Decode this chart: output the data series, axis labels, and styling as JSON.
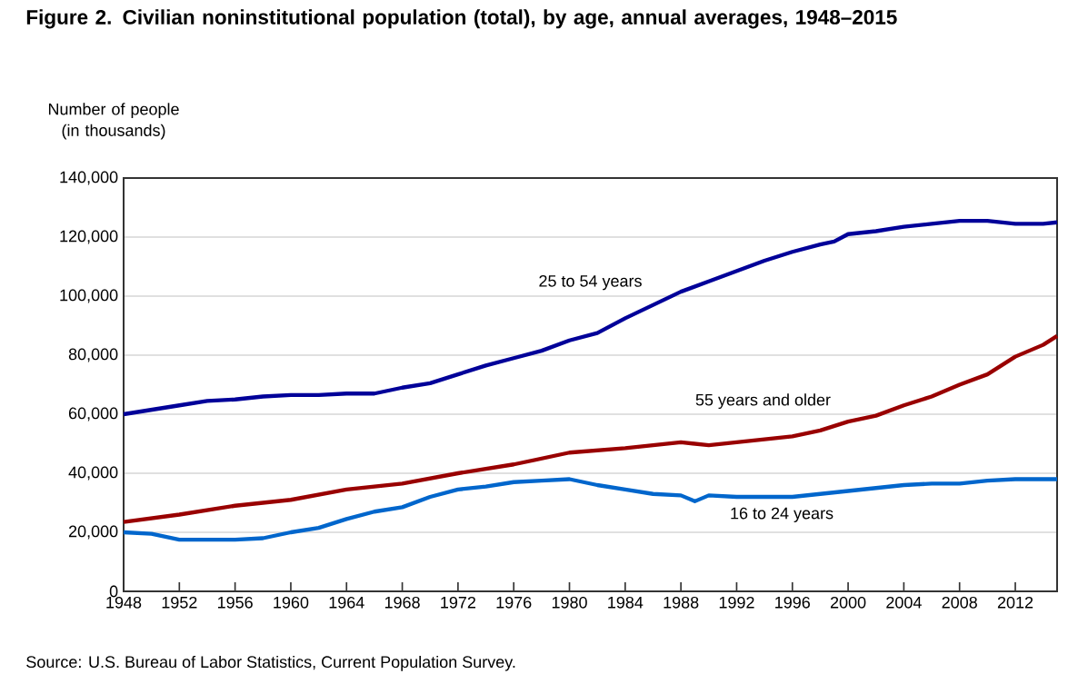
{
  "chart_data": {
    "type": "line",
    "title": "Figure 2. Civilian noninstitutional population (total), by age, annual averages, 1948–2015",
    "ylabel": "Number of people (in thousands)",
    "annotations": [
      "Source: U.S. Bureau of Labor Statistics, Current Population Survey."
    ],
    "series": [
      {
        "name": "25 to 54 years",
        "color": "#000099",
        "x": [
          1948,
          1950,
          1952,
          1954,
          1956,
          1958,
          1960,
          1962,
          1964,
          1966,
          1968,
          1970,
          1972,
          1974,
          1976,
          1978,
          1980,
          1982,
          1984,
          1986,
          1988,
          1990,
          1992,
          1994,
          1996,
          1998,
          1999,
          2000,
          2002,
          2004,
          2006,
          2008,
          2010,
          2011,
          2012,
          2014,
          2015
        ],
        "values": [
          60000,
          61500,
          63000,
          64500,
          65000,
          66000,
          66500,
          66500,
          67000,
          67000,
          69000,
          70500,
          73500,
          76500,
          79000,
          81500,
          85000,
          87500,
          92500,
          97000,
          101500,
          105000,
          108500,
          112000,
          115000,
          117500,
          118500,
          121000,
          122000,
          123500,
          124500,
          125500,
          125500,
          125000,
          124500,
          124500,
          125000
        ]
      },
      {
        "name": "55 years and older",
        "color": "#990000",
        "x": [
          1948,
          1952,
          1956,
          1960,
          1964,
          1968,
          1972,
          1976,
          1980,
          1984,
          1988,
          1990,
          1992,
          1996,
          1998,
          2000,
          2002,
          2004,
          2006,
          2008,
          2010,
          2011,
          2012,
          2014,
          2015
        ],
        "values": [
          23500,
          26000,
          29000,
          31000,
          34500,
          36500,
          40000,
          43000,
          47000,
          48500,
          50500,
          49500,
          50500,
          52500,
          54500,
          57500,
          59500,
          63000,
          66000,
          70000,
          73500,
          76500,
          79500,
          83500,
          86500
        ]
      },
      {
        "name": "16 to 24 years",
        "color": "#0066cc",
        "x": [
          1948,
          1950,
          1952,
          1954,
          1956,
          1958,
          1960,
          1962,
          1964,
          1966,
          1968,
          1970,
          1972,
          1974,
          1976,
          1978,
          1980,
          1982,
          1984,
          1986,
          1988,
          1989,
          1990,
          1992,
          1996,
          1998,
          2000,
          2002,
          2004,
          2006,
          2008,
          2010,
          2012,
          2015
        ],
        "values": [
          20000,
          19500,
          17500,
          17500,
          17500,
          18000,
          20000,
          21500,
          24500,
          27000,
          28500,
          32000,
          34500,
          35500,
          37000,
          37500,
          38000,
          36000,
          34500,
          33000,
          32500,
          30500,
          32500,
          32000,
          32000,
          33000,
          34000,
          35000,
          36000,
          36500,
          36500,
          37500,
          38000,
          38000
        ]
      }
    ],
    "xlim": [
      1948,
      2015
    ],
    "ylim": [
      0,
      140000
    ],
    "xticks": [
      1948,
      1952,
      1956,
      1960,
      1964,
      1968,
      1972,
      1976,
      1980,
      1984,
      1988,
      1992,
      1996,
      2000,
      2004,
      2008,
      2012
    ],
    "yticks": [
      0,
      {
        "value": 20000,
        "label": "20,000"
      },
      {
        "value": 40000,
        "label": "40,000"
      },
      {
        "value": 60000,
        "label": "60,000"
      },
      {
        "value": 80000,
        "label": "80,000"
      },
      {
        "value": 100000,
        "label": "100,000"
      },
      {
        "value": 120000,
        "label": "120,000"
      },
      {
        "value": 140000,
        "label": "140,000"
      }
    ],
    "grid": "y",
    "legend": false,
    "marker": "none",
    "line_style": "solid"
  }
}
